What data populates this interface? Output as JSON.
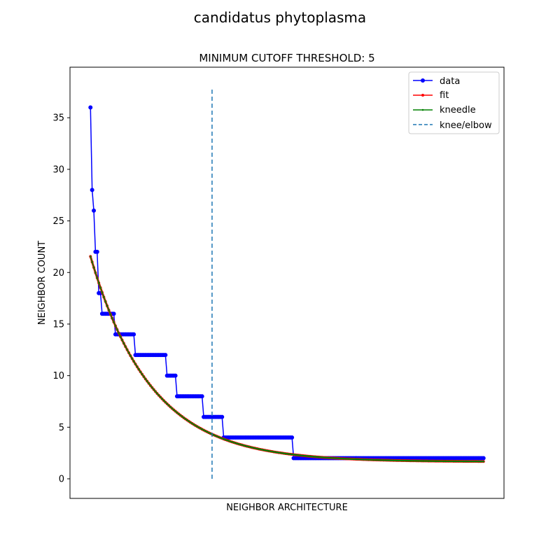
{
  "chart_data": {
    "type": "line",
    "suptitle": "candidatus phytoplasma",
    "title": "MINIMUM CUTOFF THRESHOLD: 5",
    "xlabel": "NEIGHBOR ARCHITECTURE",
    "ylabel": "NEIGHBOR COUNT",
    "x_ticks_shown": false,
    "ylim": [
      -1.9,
      39.9
    ],
    "y_ticks": [
      0,
      5,
      10,
      15,
      20,
      25,
      30,
      35
    ],
    "xlim": [
      -12.3,
      248.3
    ],
    "grid": false,
    "legend_position": "top-right",
    "knee_x": 73,
    "knee_line_y": [
      0,
      37.8
    ],
    "series": [
      {
        "name": "data",
        "color": "#0000ff",
        "marker": "circle",
        "steps": [
          {
            "x_start": 0,
            "x_end": 0,
            "y": 36
          },
          {
            "x_start": 1,
            "x_end": 1,
            "y": 28
          },
          {
            "x_start": 2,
            "x_end": 2,
            "y": 26
          },
          {
            "x_start": 3,
            "x_end": 4,
            "y": 22
          },
          {
            "x_start": 5,
            "x_end": 6,
            "y": 18
          },
          {
            "x_start": 7,
            "x_end": 14,
            "y": 16
          },
          {
            "x_start": 15,
            "x_end": 26,
            "y": 14
          },
          {
            "x_start": 27,
            "x_end": 45,
            "y": 12
          },
          {
            "x_start": 46,
            "x_end": 51,
            "y": 10
          },
          {
            "x_start": 52,
            "x_end": 67,
            "y": 8
          },
          {
            "x_start": 68,
            "x_end": 79,
            "y": 6
          },
          {
            "x_start": 80,
            "x_end": 121,
            "y": 4
          },
          {
            "x_start": 122,
            "x_end": 236,
            "y": 2
          }
        ]
      },
      {
        "name": "fit",
        "color": "#ff0000",
        "marker": "point",
        "model": {
          "a": 19.9,
          "k": 0.0275,
          "c": 1.65,
          "x_start": 0,
          "x_end": 236
        }
      },
      {
        "name": "kneedle",
        "color": "#008000",
        "marker": "point",
        "model": {
          "a": 19.9,
          "k": 0.0275,
          "c": 1.65,
          "x_start": 0,
          "x_end": 236
        }
      },
      {
        "name": "knee/elbow",
        "color": "#1f77b4",
        "marker": "none",
        "linestyle": "dashed"
      }
    ]
  }
}
